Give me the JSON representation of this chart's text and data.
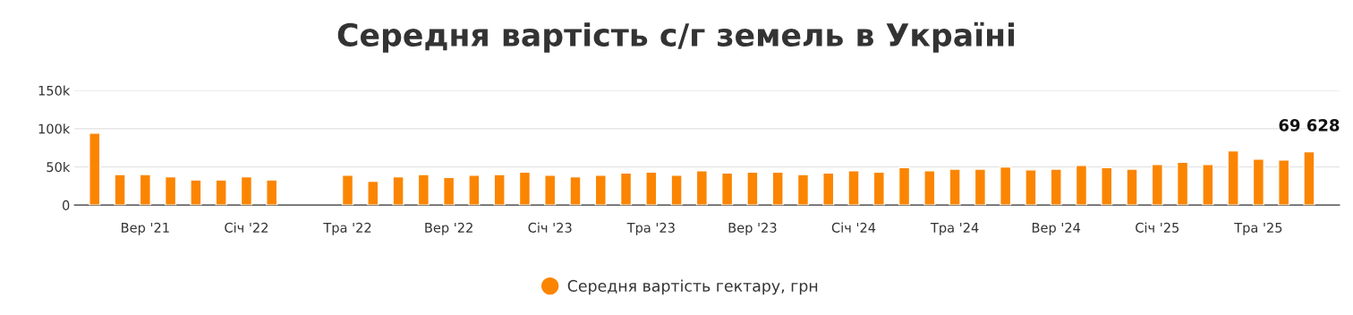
{
  "chart_data": {
    "type": "bar",
    "title": "Середня вартість с/г земель в Україні",
    "categories": [
      null,
      null,
      "Вер '21",
      null,
      null,
      null,
      "Січ '22",
      null,
      null,
      null,
      "Тра '22",
      null,
      null,
      null,
      "Вер '22",
      null,
      null,
      null,
      "Січ '23",
      null,
      null,
      null,
      "Тра '23",
      null,
      null,
      null,
      "Вер '23",
      null,
      null,
      null,
      "Січ '24",
      null,
      null,
      null,
      "Тра '24",
      null,
      null,
      null,
      "Вер '24",
      null,
      null,
      null,
      "Січ '25",
      null,
      null,
      null,
      "Тра '25",
      null,
      null
    ],
    "series": [
      {
        "name": "Середня вартість гектару, грн",
        "color": "#fb8500",
        "values": [
          94000,
          40000,
          40000,
          37000,
          33000,
          33000,
          37000,
          33000,
          null,
          null,
          39000,
          31000,
          37000,
          40000,
          36000,
          39000,
          40000,
          43000,
          39000,
          37000,
          39000,
          42000,
          43000,
          39000,
          45000,
          42000,
          43000,
          43000,
          40000,
          42000,
          45000,
          43000,
          49000,
          45000,
          47000,
          47000,
          50000,
          46000,
          47000,
          52000,
          49000,
          47000,
          53000,
          56000,
          53000,
          71000,
          60000,
          59000,
          69628
        ],
        "value_labels": [
          null,
          null,
          null,
          null,
          null,
          null,
          null,
          null,
          null,
          null,
          null,
          null,
          null,
          null,
          null,
          null,
          null,
          null,
          null,
          null,
          null,
          null,
          null,
          null,
          null,
          null,
          null,
          null,
          null,
          null,
          null,
          null,
          null,
          null,
          null,
          null,
          null,
          null,
          null,
          null,
          null,
          null,
          null,
          null,
          null,
          null,
          null,
          null,
          "69 628"
        ]
      }
    ],
    "ylim": [
      0,
      150000
    ],
    "yticks": [
      {
        "value": 0,
        "label": "0"
      },
      {
        "value": 50000,
        "label": "50k"
      },
      {
        "value": 100000,
        "label": "100k"
      },
      {
        "value": 150000,
        "label": "150k"
      }
    ],
    "grid": "y",
    "legend": "bottom"
  }
}
